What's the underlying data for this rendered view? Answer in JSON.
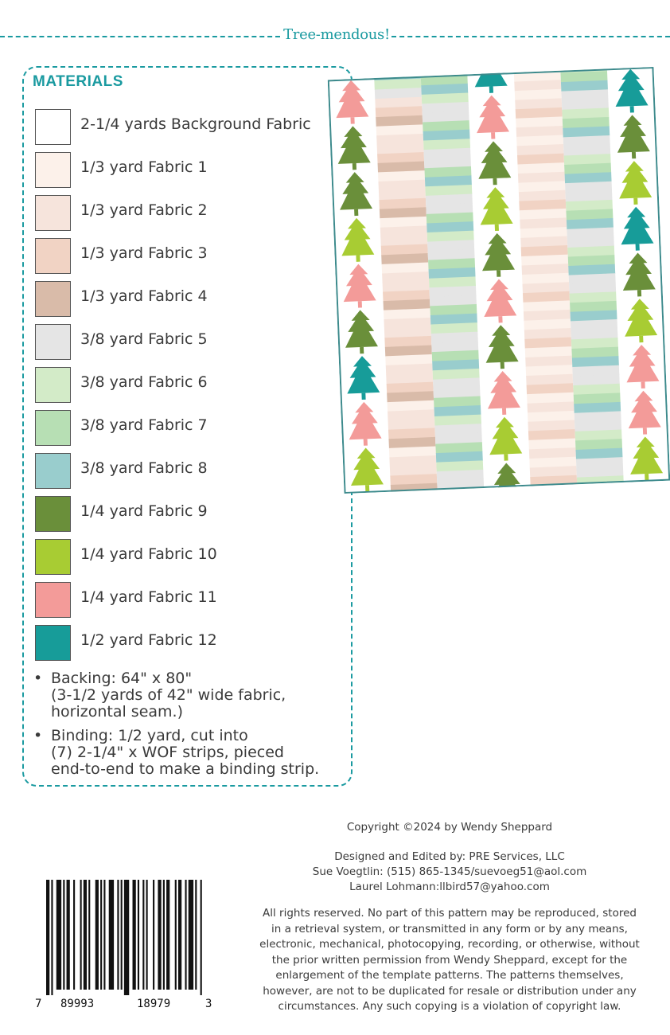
{
  "header": {
    "title": "Tree-mendous!"
  },
  "materials": {
    "heading": "MATERIALS",
    "items": [
      {
        "label": "2-1/4 yards Background Fabric",
        "color": "#ffffff"
      },
      {
        "label": "1/3 yard Fabric 1",
        "color": "#fcf1ea"
      },
      {
        "label": "1/3 yard Fabric 2",
        "color": "#f6e4dc"
      },
      {
        "label": "1/3 yard Fabric 3",
        "color": "#f1d3c4"
      },
      {
        "label": "1/3 yard Fabric 4",
        "color": "#d9bba9"
      },
      {
        "label": "3/8 yard Fabric 5",
        "color": "#e5e5e5"
      },
      {
        "label": "3/8 yard Fabric 6",
        "color": "#d3ebc8"
      },
      {
        "label": "3/8 yard Fabric 7",
        "color": "#b7dfb4"
      },
      {
        "label": "3/8 yard Fabric 8",
        "color": "#99cdcd"
      },
      {
        "label": "1/4 yard Fabric 9",
        "color": "#6a8f3a"
      },
      {
        "label": "1/4 yard Fabric 10",
        "color": "#a8cc33"
      },
      {
        "label": "1/4 yard Fabric 11",
        "color": "#f39b99"
      },
      {
        "label": "1/2 yard Fabric 12",
        "color": "#179c99"
      }
    ],
    "notes": [
      {
        "lines": [
          "Backing: 64\" x 80\"",
          "(3-1/2 yards of 42\" wide fabric,",
          "horizontal seam.)"
        ]
      },
      {
        "lines": [
          "Binding: 1/2 yard, cut into",
          "(7) 2-1/4\" x WOF strips, pieced",
          "end-to-end to make a binding strip."
        ]
      }
    ]
  },
  "credits": {
    "copyright": "Copyright ©2024 by Wendy Sheppard",
    "designed_by": "Designed and Edited by: PRE Services, LLC",
    "contact1": "Sue Voegtlin: (515) 865-1345/suevoeg51@aol.com",
    "contact2": "Laurel Lohmann:llbird57@yahoo.com",
    "legal": [
      "All rights reserved. No part of this pattern may be reproduced, stored",
      "in a retrieval system, or transmitted in any form or by any means,",
      "electronic, mechanical, photocopying, recording, or otherwise, without",
      "the prior written permission from Wendy Sheppard, except for the",
      "enlargement of the template patterns. The patterns themselves,",
      "however, are not to be duplicated for resale or distribution under any",
      "circumstances. Any such copying is a violation of copyright law."
    ]
  },
  "barcode": {
    "digits": [
      "7",
      "89993",
      "18979",
      "3"
    ]
  },
  "colors": {
    "accent": "#1a9aa0"
  }
}
